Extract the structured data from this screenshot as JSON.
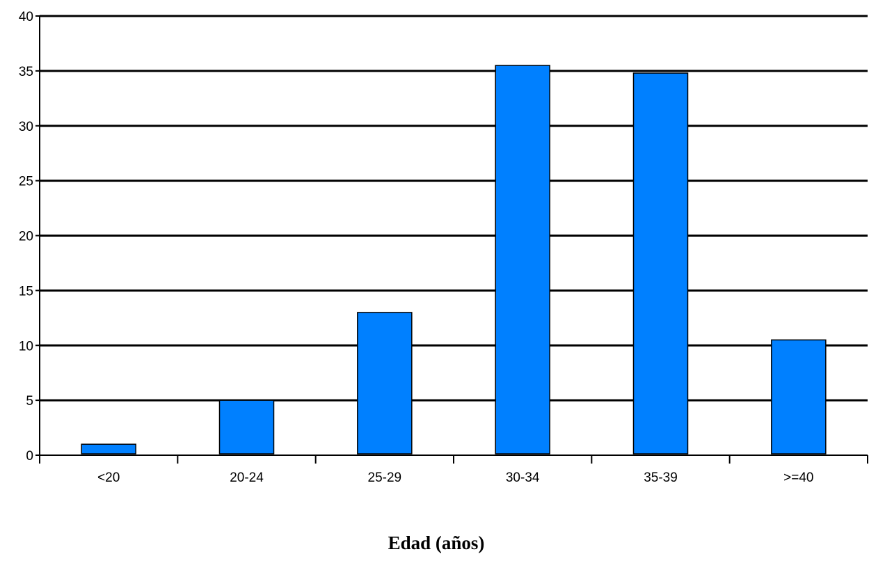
{
  "chart_data": {
    "type": "bar",
    "title": "",
    "xlabel": "Edad (años)",
    "ylabel": "",
    "categories": [
      "<20",
      "20-24",
      "25-29",
      "30-34",
      "35-39",
      ">=40"
    ],
    "values": [
      1,
      5,
      13,
      35.5,
      34.8,
      10.5
    ],
    "ylim": [
      0,
      40
    ],
    "yticks": [
      "0",
      "5",
      "10",
      "15",
      "20",
      "25",
      "30",
      "35",
      "40"
    ],
    "grid": true,
    "legend": "none",
    "bar_color": "#0080FF",
    "bar_edge_color": "#000000",
    "grid_color": "#000000"
  }
}
